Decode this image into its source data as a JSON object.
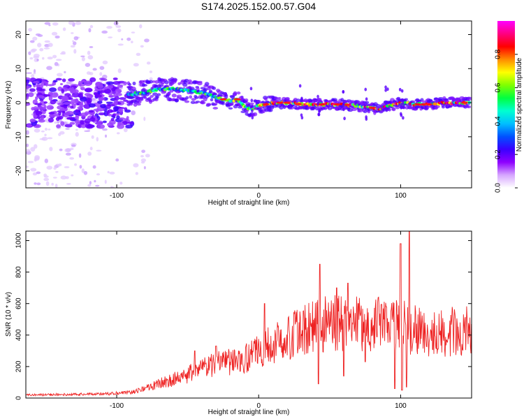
{
  "title": "S174.2025.152.00.57.G04",
  "chart_data": [
    {
      "type": "heatmap",
      "xlabel": "Height of straight line (km)",
      "ylabel": "Frequency (Hz)",
      "xlim": [
        -164,
        150
      ],
      "ylim": [
        -25,
        24
      ],
      "xticks": [
        -100,
        0,
        100
      ],
      "yticks": [
        -20,
        -10,
        0,
        10,
        20
      ],
      "grid": false,
      "colorbar": {
        "label": "Normalized spectral amplitude",
        "range": [
          0.0,
          1.0
        ],
        "ticks": [
          0.0,
          0.2,
          0.4,
          0.6,
          0.8
        ],
        "colormap": [
          "#ffffff",
          "#d6a6ff",
          "#8e00ff",
          "#3a00ff",
          "#0052ff",
          "#00bfff",
          "#00ffd0",
          "#00ff40",
          "#7fff00",
          "#ffff00",
          "#ff8c00",
          "#ff0000",
          "#ff0080",
          "#ff00ff"
        ]
      },
      "ridge": {
        "x": [
          -90,
          -80,
          -70,
          -60,
          -50,
          -40,
          -30,
          -20,
          -15,
          -10,
          -5,
          0,
          10,
          20,
          30,
          40,
          50,
          60,
          70,
          80,
          85,
          90,
          95,
          100,
          110,
          120,
          130,
          140,
          148
        ],
        "y": [
          2.5,
          3.0,
          4.0,
          4.0,
          3.5,
          3.0,
          1.5,
          0.5,
          1.0,
          -1.0,
          -2.0,
          -1.0,
          0.0,
          0.0,
          -0.5,
          -0.5,
          -0.5,
          -0.5,
          -1.0,
          -1.5,
          -2.0,
          -1.0,
          -0.5,
          0.0,
          -0.5,
          -0.5,
          0.0,
          0.0,
          0.0
        ]
      }
    },
    {
      "type": "line",
      "xlabel": "Height of straight line (km)",
      "ylabel": "SNR (10 * v/v)",
      "xlim": [
        -164,
        150
      ],
      "ylim": [
        0,
        1060
      ],
      "xticks": [
        -100,
        0,
        100
      ],
      "yticks": [
        0,
        200,
        400,
        600,
        800,
        1000
      ],
      "color": "#ee2222",
      "grid": false,
      "envelope": {
        "x": [
          -164,
          -140,
          -120,
          -100,
          -90,
          -80,
          -70,
          -60,
          -50,
          -40,
          -30,
          -20,
          -10,
          0,
          10,
          20,
          30,
          40,
          50,
          60,
          70,
          80,
          90,
          100,
          110,
          120,
          130,
          140,
          150
        ],
        "y": [
          20,
          22,
          25,
          30,
          35,
          60,
          90,
          120,
          150,
          180,
          220,
          230,
          250,
          300,
          340,
          380,
          430,
          460,
          480,
          480,
          470,
          470,
          480,
          470,
          430,
          420,
          420,
          430,
          440
        ]
      },
      "spikes": [
        {
          "x": -45,
          "y": 300
        },
        {
          "x": -30,
          "y": 330
        },
        {
          "x": 4,
          "y": 600
        },
        {
          "x": 43,
          "y": 850
        },
        {
          "x": 55,
          "y": 700
        },
        {
          "x": 63,
          "y": 730
        },
        {
          "x": 70,
          "y": 600
        },
        {
          "x": 90,
          "y": 580
        },
        {
          "x": 96,
          "y": 900
        },
        {
          "x": 100,
          "y": 980
        },
        {
          "x": 104,
          "y": 1060
        },
        {
          "x": 106,
          "y": 1060
        }
      ],
      "dips": [
        {
          "x": 42,
          "y": 90
        },
        {
          "x": 60,
          "y": 140
        },
        {
          "x": 75,
          "y": 230
        },
        {
          "x": 96,
          "y": 60
        },
        {
          "x": 101,
          "y": 50
        },
        {
          "x": 104,
          "y": 70
        }
      ]
    }
  ]
}
